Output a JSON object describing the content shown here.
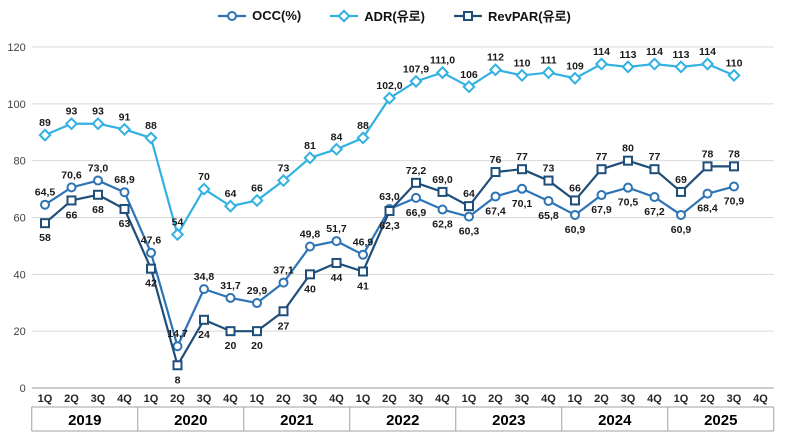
{
  "legend": {
    "items": [
      {
        "label": "OCC(%)",
        "marker": "circle",
        "color": "#2e74b5"
      },
      {
        "label": "ADR(유로)",
        "marker": "diamond",
        "color": "#33b1e1"
      },
      {
        "label": "RevPAR(유로)",
        "marker": "square",
        "color": "#1f4e79"
      }
    ]
  },
  "chart_data": {
    "type": "line",
    "quarters": [
      "1Q",
      "2Q",
      "3Q",
      "4Q",
      "1Q",
      "2Q",
      "3Q",
      "4Q",
      "1Q",
      "2Q",
      "3Q",
      "4Q",
      "1Q",
      "2Q",
      "3Q",
      "4Q",
      "1Q",
      "2Q",
      "3Q",
      "4Q",
      "1Q",
      "2Q",
      "3Q",
      "4Q",
      "1Q",
      "2Q",
      "3Q",
      "4Q"
    ],
    "years": [
      "2019",
      "2020",
      "2021",
      "2022",
      "2023",
      "2024",
      "2025"
    ],
    "ylim": [
      0,
      120
    ],
    "yticks": [
      0,
      20,
      40,
      60,
      80,
      100,
      120
    ],
    "grid": true,
    "legend_position": "top-center",
    "series": [
      {
        "name": "OCC(%)",
        "marker": "circle",
        "color": "#2e74b5",
        "values": [
          64.5,
          70.6,
          73.0,
          68.9,
          47.6,
          14.7,
          34.8,
          31.7,
          29.9,
          37.1,
          49.8,
          51.7,
          46.9,
          63.0,
          66.9,
          62.8,
          60.3,
          67.4,
          70.1,
          65.8,
          60.9,
          67.9,
          70.5,
          67.2,
          60.9,
          68.4,
          70.9
        ],
        "labels": [
          "64,5",
          "70,6",
          "73,0",
          "68,9",
          "47,6",
          "14,7",
          "34,8",
          "31,7",
          "29,9",
          "37,1",
          "49,8",
          "51,7",
          "46,9",
          "63,0",
          "66,9",
          "62,8",
          "60,3",
          "67,4",
          "70,1",
          "65,8",
          "60,9",
          "67,9",
          "70,5",
          "67,2",
          "60,9",
          "68,4",
          "70,9"
        ]
      },
      {
        "name": "ADR(유로)",
        "marker": "diamond",
        "color": "#33b1e1",
        "values": [
          89,
          93,
          93,
          91,
          88,
          54,
          70,
          64,
          66,
          73,
          81,
          84,
          88,
          102.0,
          107.9,
          111.0,
          106,
          112,
          110,
          111,
          109,
          114,
          113,
          114,
          113,
          114,
          110
        ],
        "labels": [
          "89",
          "93",
          "93",
          "91",
          "88",
          "54",
          "70",
          "64",
          "66",
          "73",
          "81",
          "84",
          "88",
          "102,0",
          "107,9",
          "111,0",
          "106",
          "112",
          "110",
          "111",
          "109",
          "114",
          "113",
          "114",
          "113",
          "114",
          "110"
        ]
      },
      {
        "name": "RevPAR(유로)",
        "marker": "square",
        "color": "#1f4e79",
        "values": [
          58,
          66,
          68,
          63,
          42,
          8,
          24,
          20,
          20,
          27,
          40,
          44,
          41,
          62.3,
          72.2,
          69.0,
          64,
          76,
          77,
          73,
          66,
          77,
          80,
          77,
          69,
          78,
          78
        ],
        "labels": [
          "58",
          "66",
          "68",
          "63",
          "42",
          "8",
          "24",
          "20",
          "20",
          "27",
          "40",
          "44",
          "41",
          "62,3",
          "72,2",
          "69,0",
          "64",
          "76",
          "77",
          "73",
          "66",
          "77",
          "80",
          "77",
          "69",
          "78",
          "78"
        ]
      }
    ]
  }
}
